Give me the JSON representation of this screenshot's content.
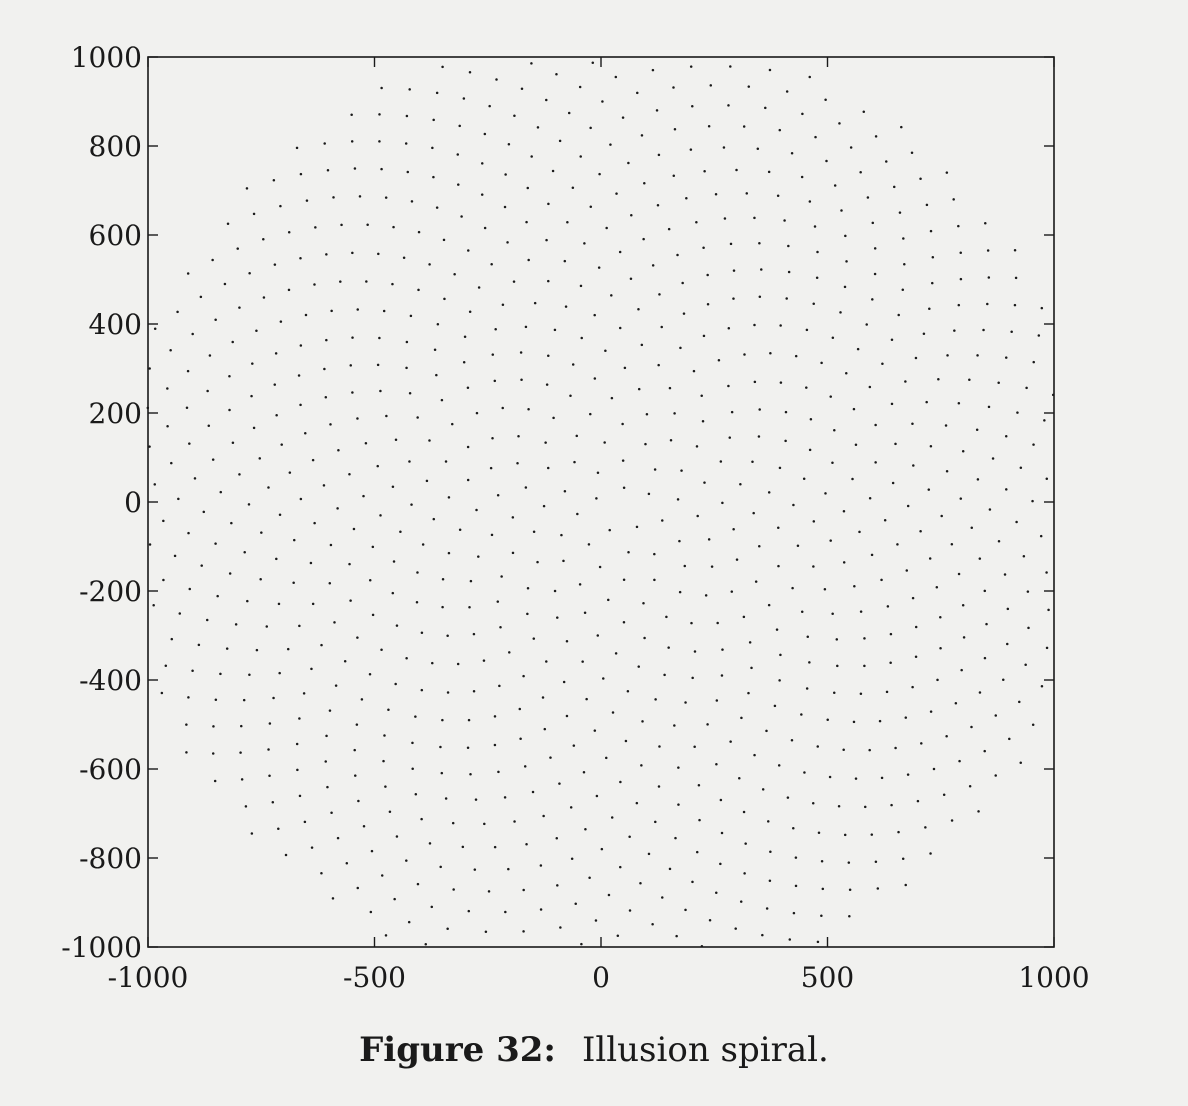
{
  "caption": {
    "label": "Figure 32:",
    "text": "Illusion spiral."
  },
  "chart_data": {
    "type": "scatter",
    "title": "",
    "xlabel": "",
    "ylabel": "",
    "xlim": [
      -1000,
      1000
    ],
    "ylim": [
      -1000,
      1000
    ],
    "x_ticks": [
      -1000,
      -500,
      0,
      500,
      1000
    ],
    "x_tick_labels": [
      "-1000",
      "-500",
      "0",
      "500",
      "1000"
    ],
    "y_ticks": [
      1000,
      800,
      600,
      400,
      200,
      0,
      -200,
      -400,
      -600,
      -800,
      -1000
    ],
    "y_tick_labels": [
      "1000",
      "800",
      "600",
      "400",
      "200",
      "0",
      "-200",
      "-400",
      "-600",
      "-800",
      "-1000"
    ],
    "grid": false,
    "marker": "dot",
    "marker_color": "#1a1a1a",
    "series": [
      {
        "pattern": "phyllotaxis spiral (Fermat spiral), points from center outward",
        "center": [
          15,
          -15
        ],
        "n_points": 1000,
        "max_radius": 1080,
        "angle_step_deg": 137.508
      }
    ]
  }
}
